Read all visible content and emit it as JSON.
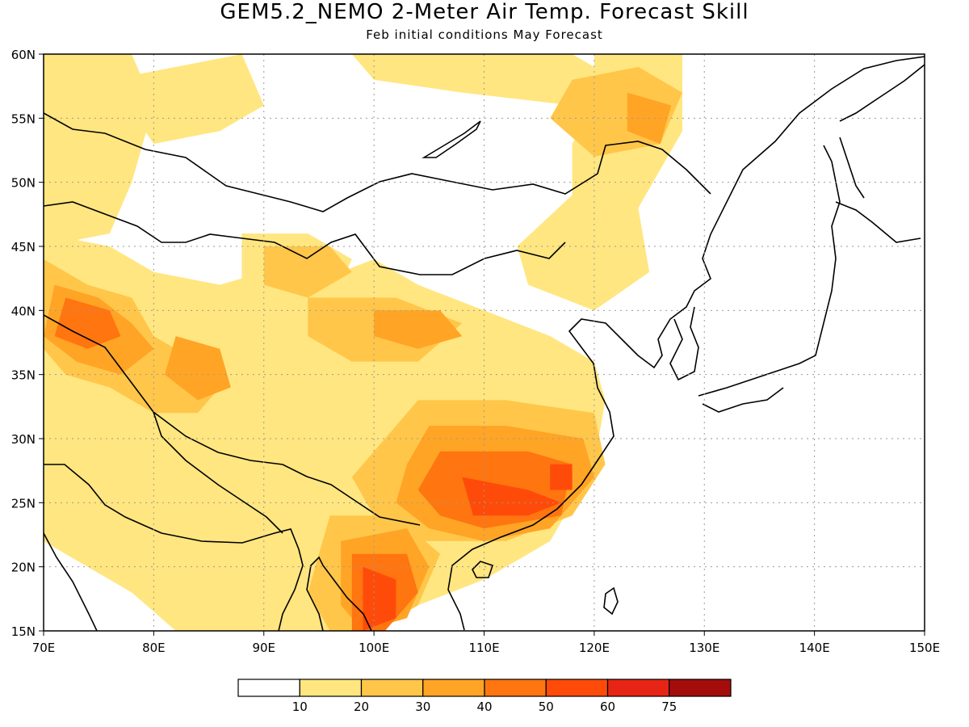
{
  "title": "GEM5.2_NEMO 2-Meter Air Temp. Forecast Skill",
  "subtitle": "Feb initial conditions  May Forecast",
  "map": {
    "lon_range": [
      70,
      150
    ],
    "lat_range": [
      15,
      60
    ],
    "lon_ticks": [
      {
        "value": 70,
        "label": "70E"
      },
      {
        "value": 80,
        "label": "80E"
      },
      {
        "value": 90,
        "label": "90E"
      },
      {
        "value": 100,
        "label": "100E"
      },
      {
        "value": 110,
        "label": "110E"
      },
      {
        "value": 120,
        "label": "120E"
      },
      {
        "value": 130,
        "label": "130E"
      },
      {
        "value": 140,
        "label": "140E"
      },
      {
        "value": 150,
        "label": "150E"
      }
    ],
    "lat_ticks": [
      {
        "value": 15,
        "label": "15N"
      },
      {
        "value": 20,
        "label": "20N"
      },
      {
        "value": 25,
        "label": "25N"
      },
      {
        "value": 30,
        "label": "30N"
      },
      {
        "value": 35,
        "label": "35N"
      },
      {
        "value": 40,
        "label": "40N"
      },
      {
        "value": 45,
        "label": "45N"
      },
      {
        "value": 50,
        "label": "50N"
      },
      {
        "value": 55,
        "label": "55N"
      },
      {
        "value": 60,
        "label": "60N"
      }
    ],
    "grid": "dotted",
    "skill_regions": [
      {
        "level": 1,
        "points": [
          [
            70,
            60
          ],
          [
            78,
            60
          ],
          [
            80,
            56
          ],
          [
            78,
            50
          ],
          [
            76,
            46
          ],
          [
            70,
            45
          ]
        ]
      },
      {
        "level": 1,
        "points": [
          [
            76,
            58
          ],
          [
            88,
            60
          ],
          [
            90,
            56
          ],
          [
            86,
            54
          ],
          [
            80,
            53
          ]
        ]
      },
      {
        "level": 1,
        "points": [
          [
            98,
            60
          ],
          [
            118,
            60
          ],
          [
            122,
            58
          ],
          [
            118,
            56
          ],
          [
            108,
            57
          ],
          [
            100,
            58
          ]
        ]
      },
      {
        "level": 1,
        "points": [
          [
            120,
            60
          ],
          [
            128,
            60
          ],
          [
            128,
            54
          ],
          [
            124,
            48
          ],
          [
            125,
            43
          ],
          [
            120,
            40
          ],
          [
            114,
            42
          ],
          [
            113,
            45
          ],
          [
            118,
            49
          ],
          [
            118,
            53
          ],
          [
            120,
            56
          ]
        ]
      },
      {
        "level": 1,
        "points": [
          [
            70,
            46
          ],
          [
            76,
            45
          ],
          [
            80,
            43
          ],
          [
            86,
            42
          ],
          [
            90,
            43
          ],
          [
            94,
            42
          ],
          [
            100,
            44
          ],
          [
            104,
            42
          ],
          [
            110,
            40
          ],
          [
            116,
            38
          ],
          [
            120,
            36
          ],
          [
            121,
            33
          ],
          [
            120,
            28
          ],
          [
            116,
            22
          ],
          [
            110,
            19
          ],
          [
            104,
            17
          ],
          [
            100,
            15
          ],
          [
            82,
            15
          ],
          [
            78,
            18
          ],
          [
            74,
            20
          ],
          [
            70,
            22
          ]
        ]
      },
      {
        "level": 1,
        "points": [
          [
            88,
            46
          ],
          [
            94,
            46
          ],
          [
            98,
            44
          ],
          [
            96,
            40
          ],
          [
            92,
            40
          ],
          [
            88,
            42
          ]
        ]
      },
      {
        "level": 2,
        "points": [
          [
            70,
            44
          ],
          [
            74,
            42
          ],
          [
            78,
            41
          ],
          [
            80,
            38
          ],
          [
            84,
            36
          ],
          [
            86,
            34
          ],
          [
            84,
            32
          ],
          [
            80,
            32
          ],
          [
            76,
            34
          ],
          [
            72,
            35
          ],
          [
            70,
            37
          ]
        ]
      },
      {
        "level": 2,
        "points": [
          [
            118,
            58
          ],
          [
            124,
            59
          ],
          [
            128,
            57
          ],
          [
            126,
            53
          ],
          [
            120,
            52
          ],
          [
            116,
            55
          ]
        ]
      },
      {
        "level": 2,
        "points": [
          [
            90,
            45
          ],
          [
            96,
            45
          ],
          [
            98,
            43
          ],
          [
            94,
            41
          ],
          [
            90,
            42
          ]
        ]
      },
      {
        "level": 2,
        "points": [
          [
            94,
            41
          ],
          [
            102,
            41
          ],
          [
            108,
            39
          ],
          [
            104,
            36
          ],
          [
            98,
            36
          ],
          [
            94,
            38
          ]
        ]
      },
      {
        "level": 2,
        "points": [
          [
            104,
            33
          ],
          [
            112,
            33
          ],
          [
            120,
            32
          ],
          [
            121,
            28
          ],
          [
            118,
            24
          ],
          [
            112,
            22
          ],
          [
            104,
            22
          ],
          [
            100,
            24
          ],
          [
            98,
            27
          ],
          [
            101,
            30
          ]
        ]
      },
      {
        "level": 2,
        "points": [
          [
            96,
            24
          ],
          [
            102,
            24
          ],
          [
            106,
            21
          ],
          [
            104,
            17
          ],
          [
            100,
            15
          ],
          [
            96,
            15
          ],
          [
            94,
            18
          ]
        ]
      },
      {
        "level": 3,
        "points": [
          [
            71,
            42
          ],
          [
            75,
            41
          ],
          [
            78,
            39
          ],
          [
            80,
            37
          ],
          [
            77,
            35
          ],
          [
            73,
            36
          ],
          [
            70,
            38
          ]
        ]
      },
      {
        "level": 3,
        "points": [
          [
            82,
            38
          ],
          [
            86,
            37
          ],
          [
            87,
            34
          ],
          [
            84,
            33
          ],
          [
            81,
            35
          ]
        ]
      },
      {
        "level": 3,
        "points": [
          [
            123,
            57
          ],
          [
            127,
            56
          ],
          [
            126,
            53
          ],
          [
            123,
            54
          ]
        ]
      },
      {
        "level": 3,
        "points": [
          [
            100,
            40
          ],
          [
            106,
            40
          ],
          [
            108,
            38
          ],
          [
            104,
            37
          ],
          [
            100,
            38
          ]
        ]
      },
      {
        "level": 3,
        "points": [
          [
            105,
            31
          ],
          [
            112,
            31
          ],
          [
            119,
            30
          ],
          [
            120,
            27
          ],
          [
            116,
            23
          ],
          [
            110,
            22
          ],
          [
            105,
            23
          ],
          [
            102,
            25
          ],
          [
            103,
            28
          ]
        ]
      },
      {
        "level": 3,
        "points": [
          [
            97,
            22
          ],
          [
            103,
            23
          ],
          [
            105,
            20
          ],
          [
            103,
            16
          ],
          [
            99,
            15
          ],
          [
            97,
            17
          ]
        ]
      },
      {
        "level": 4,
        "points": [
          [
            72,
            41
          ],
          [
            76,
            40
          ],
          [
            77,
            38
          ],
          [
            74,
            37
          ],
          [
            71,
            38
          ]
        ]
      },
      {
        "level": 4,
        "points": [
          [
            106,
            29
          ],
          [
            114,
            29
          ],
          [
            118,
            28
          ],
          [
            117,
            24
          ],
          [
            110,
            23
          ],
          [
            106,
            24
          ],
          [
            104,
            26
          ]
        ]
      },
      {
        "level": 4,
        "points": [
          [
            98,
            21
          ],
          [
            103,
            21
          ],
          [
            104,
            18
          ],
          [
            101,
            15
          ],
          [
            98,
            15
          ]
        ]
      },
      {
        "level": 5,
        "points": [
          [
            108,
            27
          ],
          [
            114,
            26
          ],
          [
            117,
            25
          ],
          [
            114,
            24
          ],
          [
            109,
            24
          ]
        ]
      },
      {
        "level": 5,
        "points": [
          [
            99,
            20
          ],
          [
            102,
            19
          ],
          [
            102,
            16
          ],
          [
            99,
            15
          ]
        ]
      },
      {
        "level": 5,
        "points": [
          [
            116,
            28
          ],
          [
            118,
            28
          ],
          [
            118,
            26
          ],
          [
            116,
            26
          ]
        ]
      }
    ]
  },
  "colorbar": {
    "colors": [
      "#ffffff",
      "#ffe680",
      "#ffc64a",
      "#ffa425",
      "#ff7510",
      "#ff4b0a",
      "#e62516",
      "#a50d0d"
    ],
    "labels": [
      "10",
      "20",
      "30",
      "40",
      "50",
      "60",
      "75"
    ]
  }
}
